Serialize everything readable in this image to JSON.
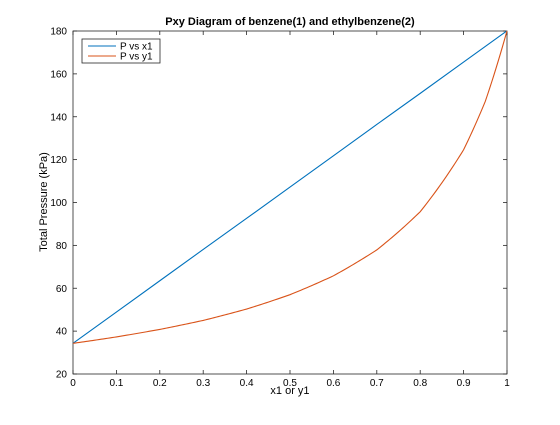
{
  "chart_data": {
    "type": "line",
    "title": "Pxy Diagram of benzene(1) and ethylbenzene(2)",
    "xlabel": "x1 or y1",
    "ylabel": "Total Pressure (kPa)",
    "xlim": [
      0,
      1
    ],
    "ylim": [
      20,
      180
    ],
    "xticks": [
      0,
      0.1,
      0.2,
      0.3,
      0.4,
      0.5,
      0.6,
      0.7,
      0.8,
      0.9,
      1
    ],
    "xtick_labels": [
      "0",
      "0.1",
      "0.2",
      "0.3",
      "0.4",
      "0.5",
      "0.6",
      "0.7",
      "0.8",
      "0.9",
      "1"
    ],
    "yticks": [
      20,
      40,
      60,
      80,
      100,
      120,
      140,
      160,
      180
    ],
    "ytick_labels": [
      "20",
      "40",
      "60",
      "80",
      "100",
      "120",
      "140",
      "160",
      "180"
    ],
    "grid": false,
    "legend_position": "top-left",
    "series": [
      {
        "name": "P vs x1",
        "color": "#0072BD",
        "x": [
          0,
          0.1,
          0.2,
          0.3,
          0.4,
          0.5,
          0.6,
          0.7,
          0.8,
          0.9,
          1
        ],
        "y": [
          34.3,
          48.9,
          63.5,
          78.1,
          92.6,
          107.2,
          121.8,
          136.4,
          150.9,
          165.5,
          180.1
        ]
      },
      {
        "name": "P vs y1",
        "color": "#D95319",
        "x": [
          0,
          0.1,
          0.2,
          0.3,
          0.4,
          0.5,
          0.6,
          0.7,
          0.8,
          0.9,
          0.95,
          1
        ],
        "y": [
          34.3,
          37.3,
          40.8,
          45.0,
          50.3,
          57.0,
          65.8,
          77.9,
          95.7,
          124.6,
          147.2,
          180.1
        ]
      }
    ]
  }
}
